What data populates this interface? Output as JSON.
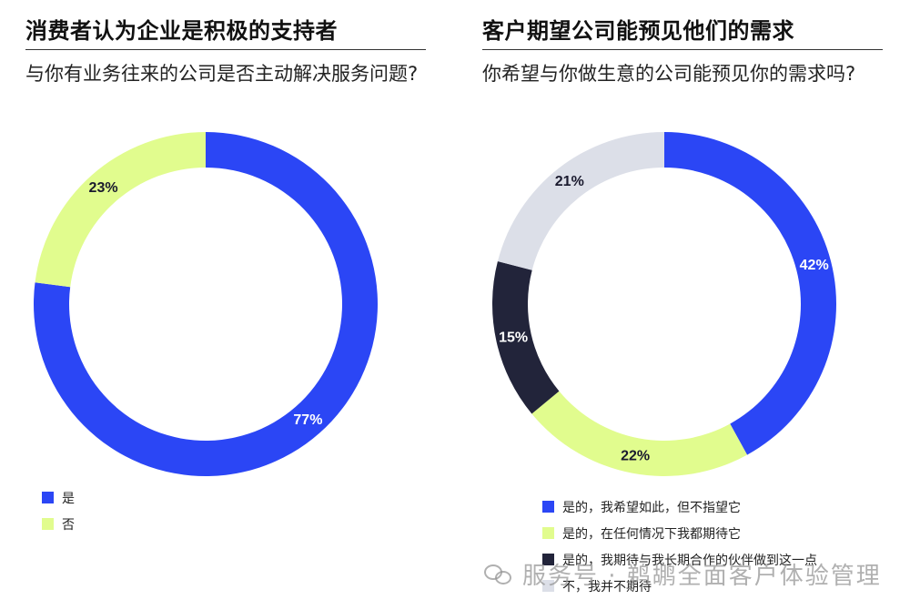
{
  "left": {
    "title": "消费者认为企业是积极的支持者",
    "question": "与你有业务往来的公司是否主动解决服务问题?"
  },
  "right": {
    "title": "客户期望公司能预见他们的需求",
    "question": "你希望与你做生意的公司能预见你的需求吗?"
  },
  "watermark": {
    "text": "服务号 · 鹈鹕全面客户体验管理",
    "icon": "wechat-icon"
  },
  "chart_data": [
    {
      "type": "pie",
      "donut": true,
      "legend_position": "bottom-left",
      "categories": [
        "是",
        "否"
      ],
      "values": [
        77,
        23
      ],
      "labels": [
        "77%",
        "23%"
      ],
      "colors": [
        "#2b46f5",
        "#e1fc8e"
      ],
      "label_colors": [
        "#ffffff",
        "#1a1a2e"
      ]
    },
    {
      "type": "pie",
      "donut": true,
      "legend_position": "bottom-left",
      "categories": [
        "是的，我希望如此，但不指望它",
        "是的，在任何情况下我都期待它",
        "是的，我期待与我长期合作的伙伴做到这一点",
        "不，我并不期待"
      ],
      "values": [
        42,
        22,
        15,
        21
      ],
      "labels": [
        "42%",
        "22%",
        "15%",
        "21%"
      ],
      "colors": [
        "#2b46f5",
        "#e1fc8e",
        "#22243a",
        "#dcdfe8"
      ],
      "label_colors": [
        "#ffffff",
        "#1a1a2e",
        "#ffffff",
        "#1a1a2e"
      ]
    }
  ]
}
